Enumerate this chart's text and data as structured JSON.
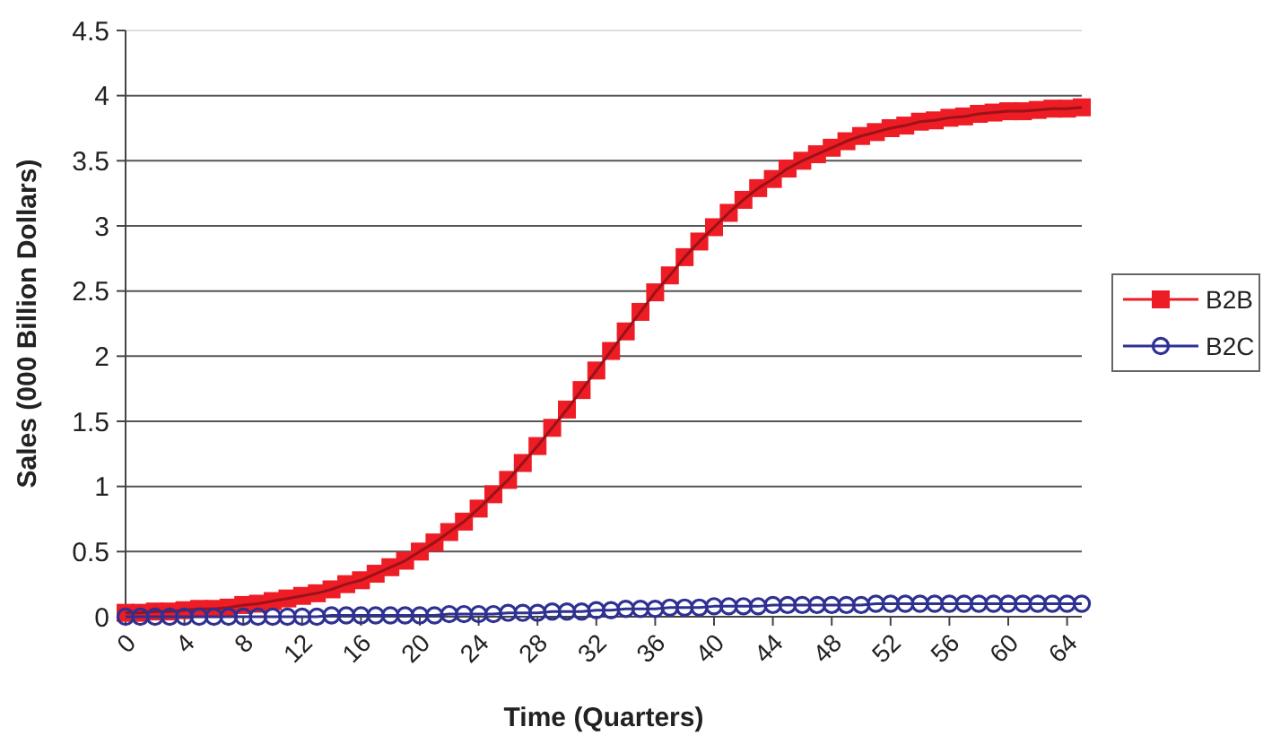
{
  "chart_data": {
    "type": "line",
    "xlabel": "Time (Quarters)",
    "ylabel": "Sales (000 Billion Dollars)",
    "x": [
      0,
      1,
      2,
      3,
      4,
      5,
      6,
      7,
      8,
      9,
      10,
      11,
      12,
      13,
      14,
      15,
      16,
      17,
      18,
      19,
      20,
      21,
      22,
      23,
      24,
      25,
      26,
      27,
      28,
      29,
      30,
      31,
      32,
      33,
      34,
      35,
      36,
      37,
      38,
      39,
      40,
      41,
      42,
      43,
      44,
      45,
      46,
      47,
      48,
      49,
      50,
      51,
      52,
      53,
      54,
      55,
      56,
      57,
      58,
      59,
      60,
      61,
      62,
      63,
      64,
      65
    ],
    "xlim": [
      0,
      65
    ],
    "xticks": [
      0,
      4,
      8,
      12,
      16,
      20,
      24,
      28,
      32,
      36,
      40,
      44,
      48,
      52,
      56,
      60,
      64
    ],
    "ylim": [
      0,
      4.5
    ],
    "yticks": [
      0,
      0.5,
      1,
      1.5,
      2,
      2.5,
      3,
      3.5,
      4,
      4.5
    ],
    "grid": "y",
    "legend": "right",
    "series": [
      {
        "name": "B2B",
        "color": "#ee1c25",
        "marker": "square",
        "values": [
          0.03,
          0.03,
          0.04,
          0.04,
          0.05,
          0.06,
          0.06,
          0.07,
          0.09,
          0.1,
          0.12,
          0.14,
          0.16,
          0.18,
          0.21,
          0.25,
          0.28,
          0.33,
          0.38,
          0.43,
          0.5,
          0.57,
          0.65,
          0.73,
          0.83,
          0.94,
          1.05,
          1.18,
          1.31,
          1.45,
          1.59,
          1.74,
          1.89,
          2.04,
          2.19,
          2.34,
          2.49,
          2.62,
          2.76,
          2.88,
          2.99,
          3.1,
          3.2,
          3.29,
          3.36,
          3.44,
          3.5,
          3.55,
          3.6,
          3.65,
          3.69,
          3.72,
          3.75,
          3.77,
          3.8,
          3.81,
          3.83,
          3.84,
          3.86,
          3.87,
          3.88,
          3.88,
          3.89,
          3.9,
          3.9,
          3.91
        ]
      },
      {
        "name": "B2C",
        "color": "#2e3192",
        "marker": "circle",
        "values": [
          0,
          0,
          0,
          0,
          0,
          0,
          0,
          0,
          0,
          0,
          0,
          0,
          0,
          0,
          0.01,
          0.01,
          0.01,
          0.01,
          0.01,
          0.01,
          0.01,
          0.01,
          0.02,
          0.02,
          0.02,
          0.02,
          0.03,
          0.03,
          0.03,
          0.04,
          0.04,
          0.04,
          0.05,
          0.05,
          0.06,
          0.06,
          0.06,
          0.07,
          0.07,
          0.07,
          0.08,
          0.08,
          0.08,
          0.08,
          0.09,
          0.09,
          0.09,
          0.09,
          0.09,
          0.09,
          0.09,
          0.1,
          0.1,
          0.1,
          0.1,
          0.1,
          0.1,
          0.1,
          0.1,
          0.1,
          0.1,
          0.1,
          0.1,
          0.1,
          0.1,
          0.1
        ]
      }
    ]
  }
}
